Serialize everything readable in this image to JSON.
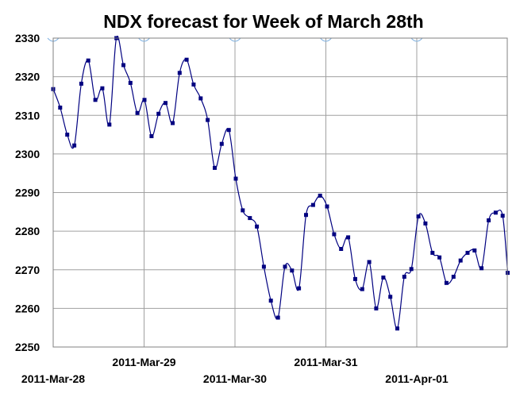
{
  "chart_data": {
    "type": "line",
    "title": "NDX forecast for Week of March 28th",
    "xlabel": "",
    "ylabel": "",
    "ylim": [
      2250,
      2330
    ],
    "yticks": [
      2250,
      2260,
      2270,
      2280,
      2290,
      2300,
      2310,
      2320,
      2330
    ],
    "xlim": [
      0,
      5
    ],
    "xticks": [
      {
        "value": 0,
        "label": "2011-Mar-28"
      },
      {
        "value": 1,
        "label": "2011-Mar-29"
      },
      {
        "value": 2,
        "label": "2011-Mar-30"
      },
      {
        "value": 3,
        "label": "2011-Mar-31"
      },
      {
        "value": 4,
        "label": "2011-Apr-01"
      }
    ],
    "grid": true,
    "series": [
      {
        "color": "#000080",
        "x": [
          0.0,
          0.077,
          0.155,
          0.232,
          0.309,
          0.386,
          0.464,
          0.541,
          0.618,
          0.695,
          0.773,
          0.85,
          0.927,
          1.004,
          1.082,
          1.159,
          1.236,
          1.314,
          1.391,
          1.468,
          1.545,
          1.623,
          1.7,
          1.777,
          1.854,
          1.932,
          2.009,
          2.086,
          2.164,
          2.241,
          2.318,
          2.395,
          2.473,
          2.55,
          2.627,
          2.704,
          2.782,
          2.859,
          2.936,
          3.013,
          3.091,
          3.168,
          3.245,
          3.323,
          3.4,
          3.477,
          3.554,
          3.632,
          3.709,
          3.786,
          3.863,
          3.941,
          4.018,
          4.095,
          4.173,
          4.25,
          4.327,
          4.404,
          4.482,
          4.559,
          4.636,
          4.713,
          4.791,
          4.868,
          4.945,
          5.0
        ],
        "y": [
          2316.8,
          2312.0,
          2305.0,
          2302.2,
          2318.2,
          2324.2,
          2314.0,
          2317.0,
          2307.6,
          2330.0,
          2323.0,
          2318.4,
          2310.6,
          2314.0,
          2304.6,
          2310.4,
          2313.2,
          2308.0,
          2321.0,
          2324.4,
          2318.0,
          2314.4,
          2308.8,
          2296.4,
          2302.6,
          2306.2,
          2293.6,
          2285.4,
          2283.4,
          2281.2,
          2270.8,
          2262.0,
          2257.6,
          2270.8,
          2269.8,
          2265.2,
          2284.2,
          2286.8,
          2289.2,
          2286.4,
          2279.2,
          2275.4,
          2278.4,
          2267.6,
          2265.0,
          2272.0,
          2260.0,
          2268.0,
          2263.0,
          2254.8,
          2268.2,
          2270.2,
          2283.8,
          2282.0,
          2274.4,
          2273.2,
          2266.6,
          2268.2,
          2272.4,
          2274.4,
          2275.0,
          2270.4,
          2282.8,
          2284.8,
          2284.0,
          2269.2
        ]
      }
    ]
  }
}
